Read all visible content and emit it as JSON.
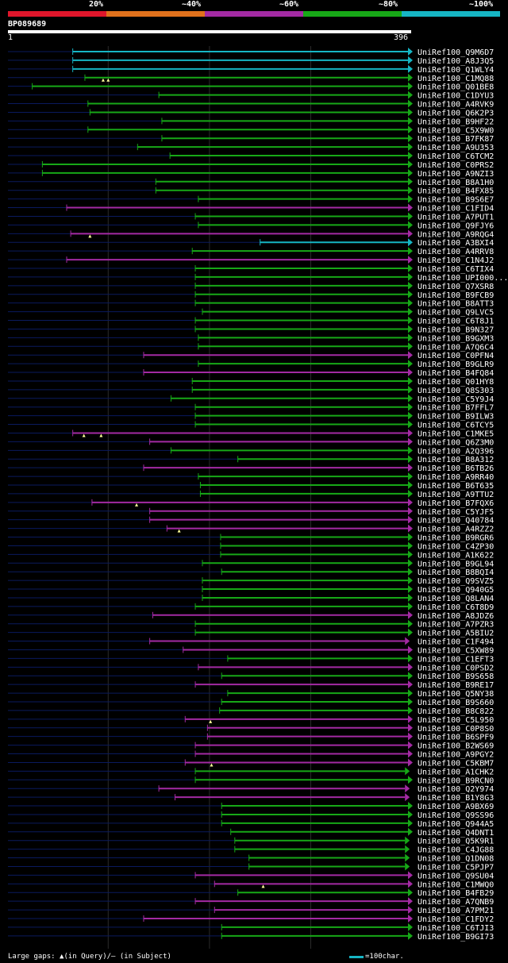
{
  "colors": {
    "cyan": "#16b5c4",
    "green": "#17a817",
    "purple": "#a32aa3",
    "dim": "#0a1a5e",
    "gap": "#1c7a1c",
    "grid": "#2a2a2a",
    "marker": "#ffff99",
    "label": "#ffffff"
  },
  "legend": {
    "labels": [
      "20%",
      "~40%",
      "~60%",
      "~80%",
      "~100%"
    ],
    "segment_colors": [
      "#e0162b",
      "#e0711c",
      "#a32aa3",
      "#17a817",
      "#16b5c4"
    ]
  },
  "query": {
    "id": "BP089689",
    "start": "1",
    "end": "396",
    "length": 396
  },
  "footer": {
    "gaps_text": "Large gaps: ▲(in Query)/– (in Subject)",
    "scale_text": "=100char."
  },
  "chart_data": {
    "type": "alignment",
    "title": "BP089689",
    "x_range": [
      1,
      396
    ],
    "hits": [
      {
        "name": "UniRef100_Q9M6D7",
        "start": 65,
        "end": 396,
        "color": "cyan"
      },
      {
        "name": "UniRef100_A8J3Q5",
        "start": 65,
        "end": 396,
        "color": "cyan"
      },
      {
        "name": "UniRef100_Q1WLY4",
        "start": 65,
        "end": 396,
        "color": "cyan"
      },
      {
        "name": "UniRef100_C1MQ88",
        "start": 77,
        "end": 396,
        "color": "green",
        "markers": [
          95,
          100
        ]
      },
      {
        "name": "UniRef100_Q01BE8",
        "start": 25,
        "end": 396,
        "color": "green"
      },
      {
        "name": "UniRef100_C1DYU3",
        "start": 150,
        "end": 396,
        "color": "green"
      },
      {
        "name": "UniRef100_A4RVK9",
        "start": 80,
        "end": 396,
        "color": "green"
      },
      {
        "name": "UniRef100_Q6K2P3",
        "start": 82,
        "end": 396,
        "color": "green"
      },
      {
        "name": "UniRef100_B9HF22",
        "start": 153,
        "end": 396,
        "color": "green"
      },
      {
        "name": "UniRef100_C5X9W0",
        "start": 80,
        "end": 396,
        "color": "green"
      },
      {
        "name": "UniRef100_B7FK87",
        "start": 153,
        "end": 396,
        "color": "green"
      },
      {
        "name": "UniRef100_A9U353",
        "start": 129,
        "end": 396,
        "color": "green"
      },
      {
        "name": "UniRef100_C6TCM2",
        "start": 161,
        "end": 396,
        "color": "green"
      },
      {
        "name": "UniRef100_C0PRS2",
        "start": 35,
        "end": 396,
        "color": "green"
      },
      {
        "name": "UniRef100_A9NZI3",
        "start": 35,
        "end": 396,
        "color": "green"
      },
      {
        "name": "UniRef100_B8A1H0",
        "start": 147,
        "end": 396,
        "color": "green"
      },
      {
        "name": "UniRef100_B4FX85",
        "start": 147,
        "end": 396,
        "color": "green"
      },
      {
        "name": "UniRef100_B9S6E7",
        "start": 189,
        "end": 396,
        "color": "green"
      },
      {
        "name": "UniRef100_C1FID4",
        "start": 59,
        "end": 396,
        "color": "purple"
      },
      {
        "name": "UniRef100_A7PUT1",
        "start": 186,
        "end": 396,
        "color": "green"
      },
      {
        "name": "UniRef100_Q9FJY6",
        "start": 189,
        "end": 396,
        "color": "green"
      },
      {
        "name": "UniRef100_A9RQG4",
        "start": 63,
        "end": 396,
        "color": "purple",
        "markers": [
          82
        ]
      },
      {
        "name": "UniRef100_A3BXI4",
        "start": 250,
        "end": 396,
        "color": "cyan"
      },
      {
        "name": "UniRef100_A4RRV8",
        "start": 183,
        "end": 396,
        "color": "green"
      },
      {
        "name": "UniRef100_C1N4J2",
        "start": 59,
        "end": 396,
        "color": "purple"
      },
      {
        "name": "UniRef100_C6TIX4",
        "start": 186,
        "end": 396,
        "color": "green"
      },
      {
        "name": "UniRef100_UPI000...",
        "start": 186,
        "end": 396,
        "color": "green"
      },
      {
        "name": "UniRef100_Q7XSR8",
        "start": 186,
        "end": 396,
        "color": "green"
      },
      {
        "name": "UniRef100_B9FCB9",
        "start": 186,
        "end": 396,
        "color": "green"
      },
      {
        "name": "UniRef100_B8ATT3",
        "start": 186,
        "end": 396,
        "color": "green"
      },
      {
        "name": "UniRef100_Q9LVC5",
        "start": 193,
        "end": 396,
        "color": "green"
      },
      {
        "name": "UniRef100_C6T8J1",
        "start": 186,
        "end": 396,
        "color": "green"
      },
      {
        "name": "UniRef100_B9N327",
        "start": 186,
        "end": 396,
        "color": "green"
      },
      {
        "name": "UniRef100_B9GXM3",
        "start": 189,
        "end": 396,
        "color": "green"
      },
      {
        "name": "UniRef100_A7Q6C4",
        "start": 189,
        "end": 396,
        "color": "green"
      },
      {
        "name": "UniRef100_C0PFN4",
        "start": 135,
        "end": 396,
        "color": "purple"
      },
      {
        "name": "UniRef100_B9GLR9",
        "start": 189,
        "end": 396,
        "color": "green"
      },
      {
        "name": "UniRef100_B4FQ84",
        "start": 135,
        "end": 396,
        "color": "purple"
      },
      {
        "name": "UniRef100_Q01HY8",
        "start": 183,
        "end": 396,
        "color": "green"
      },
      {
        "name": "UniRef100_Q8S303",
        "start": 183,
        "end": 396,
        "color": "green"
      },
      {
        "name": "UniRef100_C5Y9J4",
        "start": 162,
        "end": 396,
        "color": "green"
      },
      {
        "name": "UniRef100_B7FFL7",
        "start": 186,
        "end": 396,
        "color": "green"
      },
      {
        "name": "UniRef100_B9ILW3",
        "start": 186,
        "end": 396,
        "color": "green"
      },
      {
        "name": "UniRef100_C6TCY5",
        "start": 186,
        "end": 396,
        "color": "green"
      },
      {
        "name": "UniRef100_C1MKE5",
        "start": 65,
        "end": 396,
        "color": "purple",
        "markers": [
          76,
          93
        ]
      },
      {
        "name": "UniRef100_Q6Z3M0",
        "start": 141,
        "end": 396,
        "color": "purple"
      },
      {
        "name": "UniRef100_A2Q396",
        "start": 162,
        "end": 396,
        "color": "green"
      },
      {
        "name": "UniRef100_B8A312",
        "start": 228,
        "end": 396,
        "color": "green"
      },
      {
        "name": "UniRef100_B6TB26",
        "start": 135,
        "end": 396,
        "color": "purple"
      },
      {
        "name": "UniRef100_A9RR40",
        "start": 189,
        "end": 396,
        "color": "green"
      },
      {
        "name": "UniRef100_B6T635",
        "start": 191,
        "end": 396,
        "color": "green"
      },
      {
        "name": "UniRef100_A9TTU2",
        "start": 191,
        "end": 396,
        "color": "green"
      },
      {
        "name": "UniRef100_B7FQX6",
        "start": 84,
        "end": 396,
        "color": "purple",
        "markers": [
          128
        ]
      },
      {
        "name": "UniRef100_C5YJF5",
        "start": 141,
        "end": 396,
        "color": "purple"
      },
      {
        "name": "UniRef100_Q40784",
        "start": 141,
        "end": 396,
        "color": "purple"
      },
      {
        "name": "UniRef100_A4RZZ2",
        "start": 158,
        "end": 396,
        "color": "purple",
        "markers": [
          170
        ]
      },
      {
        "name": "UniRef100_B9RGR6",
        "start": 211,
        "end": 396,
        "color": "green"
      },
      {
        "name": "UniRef100_C4ZP30",
        "start": 211,
        "end": 396,
        "color": "green"
      },
      {
        "name": "UniRef100_A1K622",
        "start": 211,
        "end": 396,
        "color": "green"
      },
      {
        "name": "UniRef100_B9GL94",
        "start": 193,
        "end": 396,
        "color": "green"
      },
      {
        "name": "UniRef100_B8BQI4",
        "start": 212,
        "end": 396,
        "color": "green"
      },
      {
        "name": "UniRef100_Q9SVZ5",
        "start": 193,
        "end": 396,
        "color": "green"
      },
      {
        "name": "UniRef100_Q940G5",
        "start": 193,
        "end": 396,
        "color": "green"
      },
      {
        "name": "UniRef100_Q8LAN4",
        "start": 193,
        "end": 396,
        "color": "green"
      },
      {
        "name": "UniRef100_C6T8D9",
        "start": 186,
        "end": 396,
        "color": "green"
      },
      {
        "name": "UniRef100_A8JDZ6",
        "start": 144,
        "end": 396,
        "color": "purple"
      },
      {
        "name": "UniRef100_A7PZR3",
        "start": 186,
        "end": 396,
        "color": "green"
      },
      {
        "name": "UniRef100_A5BIU2",
        "start": 186,
        "end": 396,
        "color": "green"
      },
      {
        "name": "UniRef100_C1F494",
        "start": 141,
        "end": 393,
        "color": "purple"
      },
      {
        "name": "UniRef100_C5XW89",
        "start": 174,
        "end": 396,
        "color": "purple"
      },
      {
        "name": "UniRef100_C1EFT3",
        "start": 218,
        "end": 396,
        "color": "green"
      },
      {
        "name": "UniRef100_C0PSD2",
        "start": 189,
        "end": 396,
        "color": "purple"
      },
      {
        "name": "UniRef100_B9S658",
        "start": 212,
        "end": 396,
        "color": "green"
      },
      {
        "name": "UniRef100_B9RE17",
        "start": 186,
        "end": 396,
        "color": "purple"
      },
      {
        "name": "UniRef100_Q5NY38",
        "start": 218,
        "end": 396,
        "color": "green"
      },
      {
        "name": "UniRef100_B9S660",
        "start": 212,
        "end": 396,
        "color": "green"
      },
      {
        "name": "UniRef100_B8C822",
        "start": 210,
        "end": 396,
        "color": "green"
      },
      {
        "name": "UniRef100_C5L950",
        "start": 176,
        "end": 396,
        "color": "purple",
        "markers": [
          201
        ]
      },
      {
        "name": "UniRef100_C0P8S0",
        "start": 198,
        "end": 396,
        "color": "purple"
      },
      {
        "name": "UniRef100_B6SPF9",
        "start": 198,
        "end": 396,
        "color": "purple"
      },
      {
        "name": "UniRef100_B2WS69",
        "start": 186,
        "end": 396,
        "color": "purple"
      },
      {
        "name": "UniRef100_A9PGY2",
        "start": 186,
        "end": 396,
        "color": "purple"
      },
      {
        "name": "UniRef100_C5KBM7",
        "start": 176,
        "end": 396,
        "color": "purple",
        "markers": [
          202
        ]
      },
      {
        "name": "UniRef100_A1CHK2",
        "start": 186,
        "end": 393,
        "color": "green"
      },
      {
        "name": "UniRef100_B9RCN0",
        "start": 186,
        "end": 396,
        "color": "green"
      },
      {
        "name": "UniRef100_Q2Y974",
        "start": 150,
        "end": 393,
        "color": "purple"
      },
      {
        "name": "UniRef100_B1Y8G3",
        "start": 166,
        "end": 393,
        "color": "purple"
      },
      {
        "name": "UniRef100_A9BX69",
        "start": 212,
        "end": 396,
        "color": "green"
      },
      {
        "name": "UniRef100_Q9SS96",
        "start": 212,
        "end": 396,
        "color": "green"
      },
      {
        "name": "UniRef100_Q944A5",
        "start": 212,
        "end": 396,
        "color": "green"
      },
      {
        "name": "UniRef100_Q4DNT1",
        "start": 221,
        "end": 396,
        "color": "green"
      },
      {
        "name": "UniRef100_Q5K9R1",
        "start": 225,
        "end": 393,
        "color": "green"
      },
      {
        "name": "UniRef100_C4JG88",
        "start": 225,
        "end": 393,
        "color": "green"
      },
      {
        "name": "UniRef100_Q1DN08",
        "start": 239,
        "end": 393,
        "color": "green"
      },
      {
        "name": "UniRef100_C5PJP7",
        "start": 239,
        "end": 393,
        "color": "green"
      },
      {
        "name": "UniRef100_Q9SU04",
        "start": 186,
        "end": 396,
        "color": "purple"
      },
      {
        "name": "UniRef100_C1MWQ0",
        "start": 205,
        "end": 396,
        "color": "purple",
        "markers": [
          253
        ]
      },
      {
        "name": "UniRef100_B4FB29",
        "start": 228,
        "end": 396,
        "color": "green"
      },
      {
        "name": "UniRef100_A7QNB9",
        "start": 186,
        "end": 396,
        "color": "purple"
      },
      {
        "name": "UniRef100_A7PM21",
        "start": 205,
        "end": 396,
        "color": "purple"
      },
      {
        "name": "UniRef100_C1FDY2",
        "start": 135,
        "end": 396,
        "color": "purple"
      },
      {
        "name": "UniRef100_C6TJI3",
        "start": 212,
        "end": 396,
        "color": "green"
      },
      {
        "name": "UniRef100_B9GI73",
        "start": 212,
        "end": 396,
        "color": "green"
      }
    ]
  }
}
